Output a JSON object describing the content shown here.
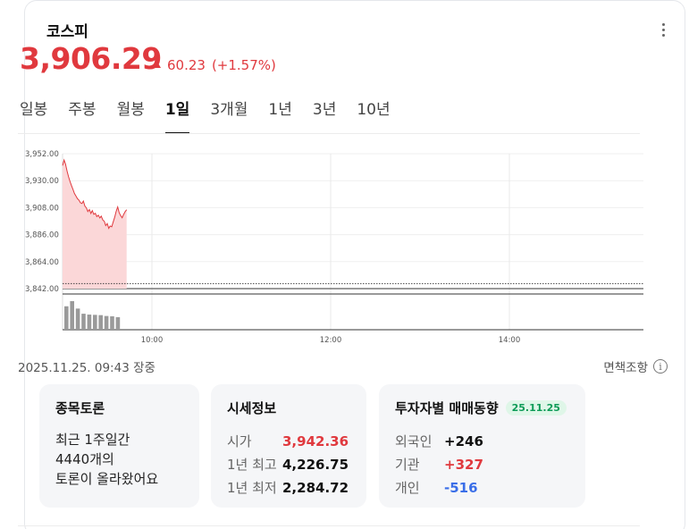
{
  "header": {
    "title": "코스피",
    "menu_icon": "more-vertical-icon"
  },
  "price": {
    "value": "3,906.29",
    "change": "60.23",
    "change_pct": "(+1.57%)",
    "direction": "up",
    "up_color": "#e0393e"
  },
  "tabs": [
    {
      "label": "일봉",
      "active": false
    },
    {
      "label": "주봉",
      "active": false
    },
    {
      "label": "월봉",
      "active": false
    },
    {
      "label": "1일",
      "active": true
    },
    {
      "label": "3개월",
      "active": false
    },
    {
      "label": "1년",
      "active": false
    },
    {
      "label": "3년",
      "active": false
    },
    {
      "label": "10년",
      "active": false
    }
  ],
  "chart_data": {
    "type": "area",
    "y_ticks": [
      "3,952.00",
      "3,930.00",
      "3,908.00",
      "3,886.00",
      "3,864.00",
      "3,842.00"
    ],
    "ylim": [
      3842,
      3952
    ],
    "x_ticks": [
      "10:00",
      "12:00",
      "14:00"
    ],
    "x_range": [
      "09:00",
      "15:30"
    ],
    "reference_line": 3846.06,
    "grid": true,
    "line_color": "#e0393e",
    "fill_color": "#fbd7d8",
    "series": [
      {
        "x": [
          "09:00",
          "09:01",
          "09:02",
          "09:03",
          "09:04",
          "09:05",
          "09:06",
          "09:07",
          "09:08",
          "09:09",
          "09:10",
          "09:11",
          "09:12",
          "09:13",
          "09:14",
          "09:15",
          "09:16",
          "09:17",
          "09:18",
          "09:19",
          "09:20",
          "09:21",
          "09:22",
          "09:23",
          "09:24",
          "09:25",
          "09:26",
          "09:27",
          "09:28",
          "09:29",
          "09:30",
          "09:31",
          "09:32",
          "09:33",
          "09:34",
          "09:35",
          "09:36",
          "09:37",
          "09:38",
          "09:39",
          "09:40",
          "09:41",
          "09:42",
          "09:43"
        ],
        "values": [
          3942.4,
          3946.8,
          3943.5,
          3938.0,
          3933.2,
          3929.5,
          3926.0,
          3922.8,
          3919.6,
          3917.5,
          3915.3,
          3914.2,
          3912.0,
          3911.4,
          3913.4,
          3909.3,
          3907.8,
          3904.9,
          3906.5,
          3903.3,
          3905.6,
          3902.5,
          3903.4,
          3900.7,
          3901.9,
          3899.6,
          3901.1,
          3898.0,
          3896.9,
          3893.4,
          3895.0,
          3891.2,
          3893.1,
          3892.4,
          3896.4,
          3900.1,
          3905.0,
          3908.6,
          3904.1,
          3901.5,
          3899.8,
          3902.4,
          3904.7,
          3906.3
        ]
      }
    ],
    "volume": [
      82,
      100,
      74,
      56,
      53,
      52,
      51,
      48,
      47,
      44
    ]
  },
  "status": {
    "datetime": "2025.11.25. 09:43",
    "state": "장중",
    "disclaimer": "면책조항",
    "info_icon": "info-circle-icon"
  },
  "discussion": {
    "title": "종목토론",
    "line1": "최근 1주일간",
    "count": "4440",
    "count_suffix": "개의",
    "line3": "토론이 올라왔어요"
  },
  "quote": {
    "title": "시세정보",
    "rows": [
      {
        "label": "시가",
        "value": "3,942.36",
        "tone": "up"
      },
      {
        "label": "1년 최고",
        "value": "4,226.75",
        "tone": "dark"
      },
      {
        "label": "1년 최저",
        "value": "2,284.72",
        "tone": "dark"
      }
    ]
  },
  "investors": {
    "title": "투자자별 매매동향",
    "date_badge": "25.11.25",
    "rows": [
      {
        "label": "외국인",
        "value": "+246",
        "tone": "dark"
      },
      {
        "label": "기관",
        "value": "+327",
        "tone": "up"
      },
      {
        "label": "개인",
        "value": "-516",
        "tone": "down"
      }
    ]
  }
}
